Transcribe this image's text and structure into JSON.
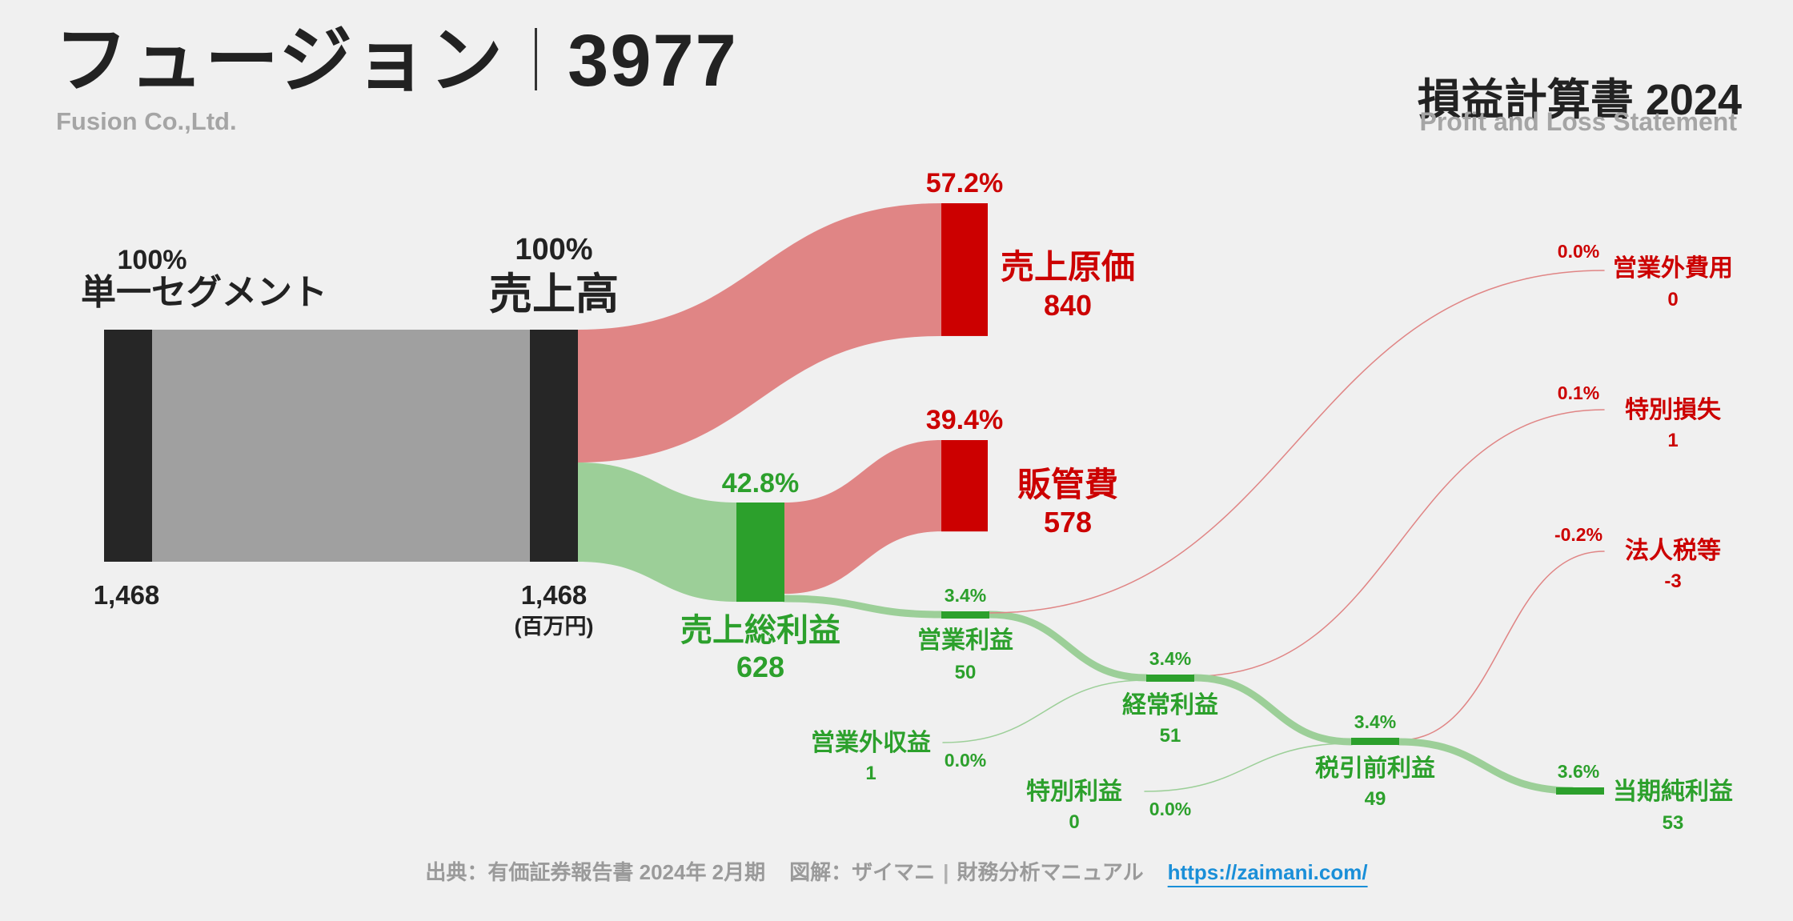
{
  "header": {
    "company_jp": "フュージョン",
    "ticker": "3977",
    "company_en": "Fusion Co.,Ltd.",
    "statement_title": "損益計算書 2024",
    "statement_subtitle": "Profit and Loss Statement"
  },
  "footer": {
    "source": "出典：有価証券報告書 2024年 2月期",
    "credit": "図解：ザイマニ",
    "credit_sub": "財務分析マニュアル",
    "url": "https://zaimani.com/"
  },
  "colors": {
    "background": "#f0f0f0",
    "dark_node": "#262626",
    "gray_flow": "#a0a0a0",
    "cost_node": "#cc0000",
    "cost_flow": "#e08585",
    "profit_node": "#2ca02c",
    "profit_flow": "#9ccf98",
    "cost_text": "#cc0000",
    "profit_text": "#2ca02c"
  },
  "chart_data": {
    "type": "sankey",
    "unit": "(百万円)",
    "nodes": [
      {
        "id": "segment",
        "label": "単一セグメント",
        "value": "1,468",
        "pct": "100%",
        "kind": "source"
      },
      {
        "id": "revenue",
        "label": "売上高",
        "value": "1,468",
        "pct": "100%",
        "kind": "source"
      },
      {
        "id": "cogs",
        "label": "売上原価",
        "value": "840",
        "pct": "57.2%",
        "kind": "cost"
      },
      {
        "id": "gross",
        "label": "売上総利益",
        "value": "628",
        "pct": "42.8%",
        "kind": "profit"
      },
      {
        "id": "sga",
        "label": "販管費",
        "value": "578",
        "pct": "39.4%",
        "kind": "cost"
      },
      {
        "id": "op",
        "label": "営業利益",
        "value": "50",
        "pct": "3.4%",
        "kind": "profit"
      },
      {
        "id": "nonop_inc",
        "label": "営業外収益",
        "value": "1",
        "pct": "0.0%",
        "kind": "profit"
      },
      {
        "id": "nonop_exp",
        "label": "営業外費用",
        "value": "0",
        "pct": "0.0%",
        "kind": "cost"
      },
      {
        "id": "ordinary",
        "label": "経常利益",
        "value": "51",
        "pct": "3.4%",
        "kind": "profit"
      },
      {
        "id": "ext_inc",
        "label": "特別利益",
        "value": "0",
        "pct": "0.0%",
        "kind": "profit"
      },
      {
        "id": "ext_loss",
        "label": "特別損失",
        "value": "1",
        "pct": "0.1%",
        "kind": "cost"
      },
      {
        "id": "pretax",
        "label": "税引前利益",
        "value": "49",
        "pct": "3.4%",
        "kind": "profit"
      },
      {
        "id": "tax",
        "label": "法人税等",
        "value": "-3",
        "pct": "-0.2%",
        "kind": "cost"
      },
      {
        "id": "net",
        "label": "当期純利益",
        "value": "53",
        "pct": "3.6%",
        "kind": "profit"
      }
    ],
    "links": [
      {
        "from": "segment",
        "to": "revenue",
        "value": 1468
      },
      {
        "from": "revenue",
        "to": "cogs",
        "value": 840
      },
      {
        "from": "revenue",
        "to": "gross",
        "value": 628
      },
      {
        "from": "gross",
        "to": "sga",
        "value": 578
      },
      {
        "from": "gross",
        "to": "op",
        "value": 50
      },
      {
        "from": "op",
        "to": "nonop_exp",
        "value": 0
      },
      {
        "from": "op",
        "to": "ordinary",
        "value": 50
      },
      {
        "from": "nonop_inc",
        "to": "ordinary",
        "value": 1
      },
      {
        "from": "ordinary",
        "to": "ext_loss",
        "value": 1
      },
      {
        "from": "ordinary",
        "to": "pretax",
        "value": 49
      },
      {
        "from": "ext_inc",
        "to": "pretax",
        "value": 0
      },
      {
        "from": "pretax",
        "to": "tax",
        "value": -3
      },
      {
        "from": "pretax",
        "to": "net",
        "value": 53
      }
    ]
  }
}
